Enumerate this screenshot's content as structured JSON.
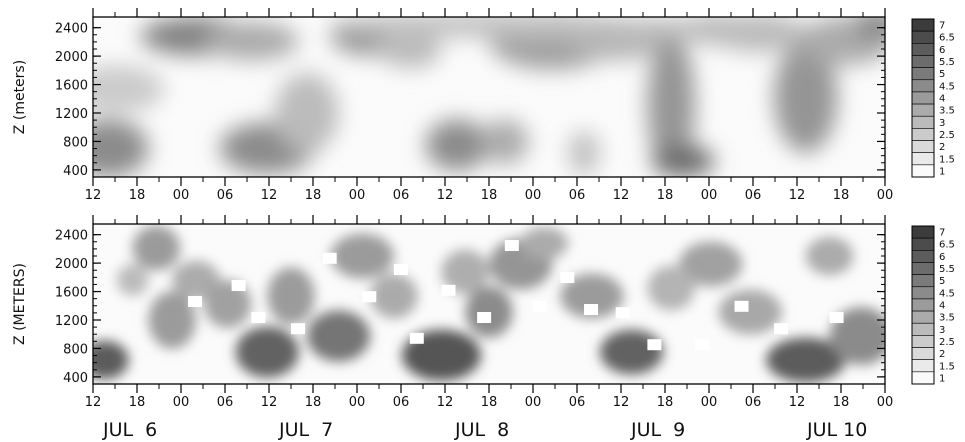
{
  "chart_data": [
    {
      "type": "heatmap",
      "ylabel": "Z (meters)",
      "yticks": [
        400,
        800,
        1200,
        1600,
        2000,
        2400
      ],
      "ylim": [
        300,
        2550
      ],
      "xticks": [
        "12",
        "18",
        "00",
        "06",
        "12",
        "18",
        "00",
        "06",
        "12",
        "18",
        "00",
        "06",
        "12",
        "18",
        "00",
        "06",
        "12",
        "18",
        "00"
      ],
      "colorbar_levels": [
        "7",
        "6.5",
        "6",
        "5.5",
        "5",
        "4.5",
        "4",
        "3.5",
        "3",
        "2.5",
        "2",
        "1.5",
        "1"
      ],
      "colormap": "white-to-dark-gray"
    },
    {
      "type": "heatmap",
      "ylabel": "Z (METERS)",
      "yticks": [
        400,
        800,
        1200,
        1600,
        2000,
        2400
      ],
      "ylim": [
        300,
        2550
      ],
      "xticks": [
        "12",
        "18",
        "00",
        "06",
        "12",
        "18",
        "00",
        "06",
        "12",
        "18",
        "00",
        "06",
        "12",
        "18",
        "00",
        "06",
        "12",
        "18",
        "00"
      ],
      "date_labels": [
        "JUL  6",
        "JUL  7",
        "JUL  8",
        "JUL  9",
        "JUL 10"
      ],
      "colorbar_levels": [
        "7",
        "6.5",
        "6",
        "5.5",
        "5",
        "4.5",
        "4",
        "3.5",
        "3",
        "2.5",
        "2",
        "1.5",
        "1"
      ],
      "colormap": "white-to-dark-gray"
    }
  ]
}
